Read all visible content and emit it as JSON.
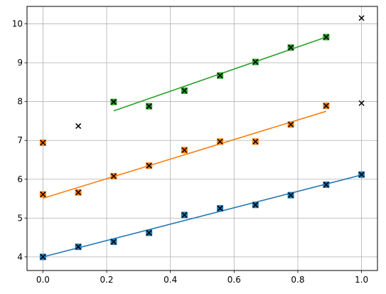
{
  "chart_data": {
    "type": "scatter",
    "title": "",
    "xlabel": "",
    "ylabel": "",
    "xlim": [
      -0.05,
      1.05
    ],
    "ylim": [
      3.65,
      10.45
    ],
    "grid": true,
    "xticks": [
      "0.0",
      "0.2",
      "0.4",
      "0.6",
      "0.8",
      "1.0"
    ],
    "yticks": [
      "4",
      "5",
      "6",
      "7",
      "8",
      "9",
      "10"
    ],
    "series": [
      {
        "color": "#1f77b4",
        "points": [
          {
            "x": 0.0,
            "y": 4.0
          },
          {
            "x": 0.111,
            "y": 4.26
          },
          {
            "x": 0.222,
            "y": 4.39
          },
          {
            "x": 0.333,
            "y": 4.62
          },
          {
            "x": 0.444,
            "y": 5.08
          },
          {
            "x": 0.556,
            "y": 5.25
          },
          {
            "x": 0.667,
            "y": 5.34
          },
          {
            "x": 0.778,
            "y": 5.59
          },
          {
            "x": 0.889,
            "y": 5.86
          },
          {
            "x": 1.0,
            "y": 6.12
          }
        ],
        "fit": {
          "x": [
            0.0,
            1.0
          ],
          "y": [
            4.0,
            6.11
          ]
        }
      },
      {
        "color": "#ff7f0e",
        "points": [
          {
            "x": 0.0,
            "y": 5.61
          },
          {
            "x": 0.0,
            "y": 6.94
          },
          {
            "x": 0.111,
            "y": 5.66
          },
          {
            "x": 0.222,
            "y": 6.08
          },
          {
            "x": 0.333,
            "y": 6.35
          },
          {
            "x": 0.444,
            "y": 6.75
          },
          {
            "x": 0.556,
            "y": 6.97
          },
          {
            "x": 0.667,
            "y": 6.97
          },
          {
            "x": 0.778,
            "y": 7.41
          },
          {
            "x": 0.889,
            "y": 7.89
          }
        ],
        "fit": {
          "x": [
            0.0,
            0.889
          ],
          "y": [
            5.51,
            7.75
          ]
        }
      },
      {
        "color": "#2ca02c",
        "points": [
          {
            "x": 0.222,
            "y": 7.99
          },
          {
            "x": 0.333,
            "y": 7.88
          },
          {
            "x": 0.444,
            "y": 8.28
          },
          {
            "x": 0.556,
            "y": 8.67
          },
          {
            "x": 0.667,
            "y": 9.02
          },
          {
            "x": 0.778,
            "y": 9.39
          },
          {
            "x": 0.889,
            "y": 9.66
          }
        ],
        "fit": {
          "x": [
            0.222,
            0.889
          ],
          "y": [
            7.76,
            9.66
          ]
        }
      }
    ],
    "outliers": [
      {
        "x": 0.111,
        "y": 7.37
      },
      {
        "x": 1.0,
        "y": 7.96
      },
      {
        "x": 1.0,
        "y": 10.15
      }
    ]
  }
}
